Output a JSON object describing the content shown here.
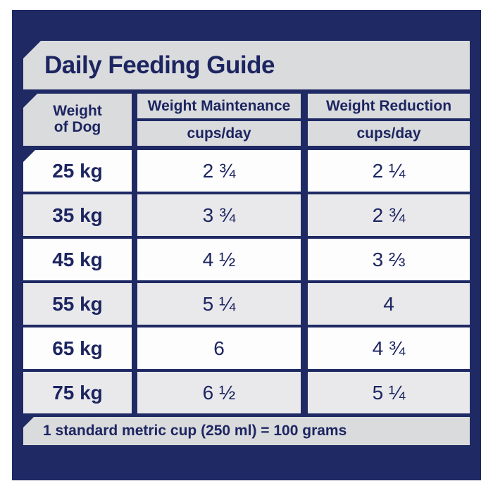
{
  "title": "Daily Feeding Guide",
  "header": {
    "weight_line1": "Weight",
    "weight_line2": "of Dog",
    "maintenance_label": "Weight Maintenance",
    "maintenance_unit": "cups/day",
    "reduction_label": "Weight Reduction",
    "reduction_unit": "cups/day"
  },
  "rows": [
    {
      "weight": "25 kg",
      "maintenance": "2 ¾",
      "reduction": "2 ¼"
    },
    {
      "weight": "35 kg",
      "maintenance": "3 ¾",
      "reduction": "2 ¾"
    },
    {
      "weight": "45 kg",
      "maintenance": "4 ½",
      "reduction": "3 ⅔"
    },
    {
      "weight": "55 kg",
      "maintenance": "5 ¼",
      "reduction": "4"
    },
    {
      "weight": "65 kg",
      "maintenance": "6",
      "reduction": "4 ¾"
    },
    {
      "weight": "75 kg",
      "maintenance": "6 ½",
      "reduction": "5 ¼"
    }
  ],
  "footnote": "1 standard metric cup (250 ml) = 100 grams",
  "colors": {
    "panel_navy": "#1f2a64",
    "banner_gray": "#dadbdd",
    "row_white": "#fdfdfe",
    "row_alt_gray": "#e9e9ec",
    "text_navy": "#1c2560"
  }
}
